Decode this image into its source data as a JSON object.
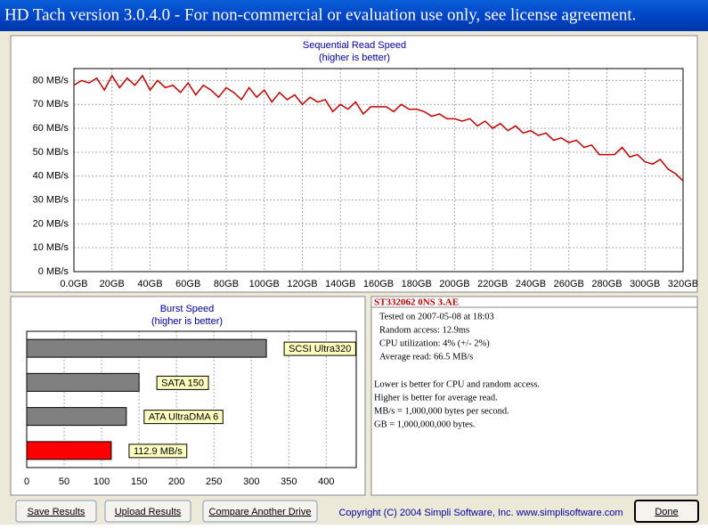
{
  "window_title": "HD Tach version 3.0.4.0  - For non-commercial or evaluation use only, see license agreement.",
  "chart_data": [
    {
      "type": "line",
      "title": "Sequential Read Speed",
      "subtitle": "(higher is better)",
      "color": "#c00000",
      "grid": true,
      "x": [
        0,
        4,
        8,
        12,
        16,
        20,
        24,
        28,
        32,
        36,
        40,
        44,
        48,
        52,
        56,
        60,
        64,
        68,
        72,
        76,
        80,
        84,
        88,
        92,
        96,
        100,
        104,
        108,
        112,
        116,
        120,
        124,
        128,
        132,
        136,
        140,
        144,
        148,
        152,
        156,
        160,
        164,
        168,
        172,
        176,
        180,
        184,
        188,
        192,
        196,
        200,
        204,
        208,
        212,
        216,
        220,
        224,
        228,
        232,
        236,
        240,
        244,
        248,
        252,
        256,
        260,
        264,
        268,
        272,
        276,
        280,
        284,
        288,
        292,
        296,
        300,
        304,
        308,
        312,
        316,
        320
      ],
      "values": [
        78,
        80,
        79,
        81,
        76,
        82,
        77,
        81,
        78,
        82,
        76,
        80,
        77,
        78,
        75,
        79,
        74,
        78,
        76,
        73,
        77,
        75,
        72,
        77,
        73,
        76,
        71,
        75,
        72,
        74,
        70,
        73,
        71,
        72,
        67,
        70,
        68,
        71,
        66,
        69,
        69,
        69,
        67,
        70,
        68,
        68,
        67,
        65,
        66,
        64,
        64,
        63,
        64,
        61,
        63,
        60,
        62,
        59,
        61,
        58,
        59,
        57,
        58,
        55,
        56,
        54,
        55,
        52,
        53,
        49,
        49,
        49,
        52,
        48,
        49,
        46,
        45,
        47,
        43,
        41,
        38
      ],
      "xlim": [
        0,
        320
      ],
      "xticks": [
        {
          "value": 0,
          "label": "0.0GB"
        },
        {
          "value": 20,
          "label": "20GB"
        },
        {
          "value": 40,
          "label": "40GB"
        },
        {
          "value": 60,
          "label": "60GB"
        },
        {
          "value": 80,
          "label": "80GB"
        },
        {
          "value": 100,
          "label": "100GB"
        },
        {
          "value": 120,
          "label": "120GB"
        },
        {
          "value": 140,
          "label": "140GB"
        },
        {
          "value": 160,
          "label": "160GB"
        },
        {
          "value": 180,
          "label": "180GB"
        },
        {
          "value": 200,
          "label": "200GB"
        },
        {
          "value": 220,
          "label": "220GB"
        },
        {
          "value": 240,
          "label": "240GB"
        },
        {
          "value": 260,
          "label": "260GB"
        },
        {
          "value": 280,
          "label": "280GB"
        },
        {
          "value": 300,
          "label": "300GB"
        },
        {
          "value": 320,
          "label": "320GB"
        }
      ],
      "ylim": [
        0,
        85
      ],
      "yticks": [
        {
          "value": 0,
          "label": "0 MB/s"
        },
        {
          "value": 10,
          "label": "10 MB/s"
        },
        {
          "value": 20,
          "label": "20 MB/s"
        },
        {
          "value": 30,
          "label": "30 MB/s"
        },
        {
          "value": 40,
          "label": "40 MB/s"
        },
        {
          "value": 50,
          "label": "50 MB/s"
        },
        {
          "value": 60,
          "label": "60 MB/s"
        },
        {
          "value": 70,
          "label": "70 MB/s"
        },
        {
          "value": 80,
          "label": "80 MB/s"
        }
      ]
    },
    {
      "type": "bar",
      "orientation": "horizontal",
      "title": "Burst Speed",
      "subtitle": "(higher is better)",
      "grid": true,
      "categories": [
        "SCSI Ultra320",
        "SATA 150",
        "ATA UltraDMA 6",
        null
      ],
      "values": [
        320,
        150,
        133,
        112.9
      ],
      "value_labels": [
        null,
        null,
        null,
        "112.9 MB/s"
      ],
      "colors": [
        "#808080",
        "#808080",
        "#808080",
        "#ff0000"
      ],
      "xlim": [
        0,
        440
      ],
      "xticks": [
        0,
        50,
        100,
        150,
        200,
        250,
        300,
        350,
        400
      ]
    }
  ],
  "info": {
    "drive": "ST332062 0NS 3.AE",
    "stats": [
      "Tested on 2007-05-08 at 18:03",
      "Random access: 12.9ms",
      "CPU utilization: 4% (+/- 2%)",
      "Average read: 66.5 MB/s"
    ],
    "notes": [
      "Lower is better for CPU and random access.",
      "Higher is better for average read.",
      "MB/s = 1,000,000 bytes per second.",
      "GB = 1,000,000,000 bytes."
    ]
  },
  "buttons": [
    "Save Results",
    "Upload Results",
    "Compare Another Drive",
    "Done"
  ],
  "copyright": "Copyright (C) 2004 Simpli Software, Inc. www.simplisoftware.com"
}
